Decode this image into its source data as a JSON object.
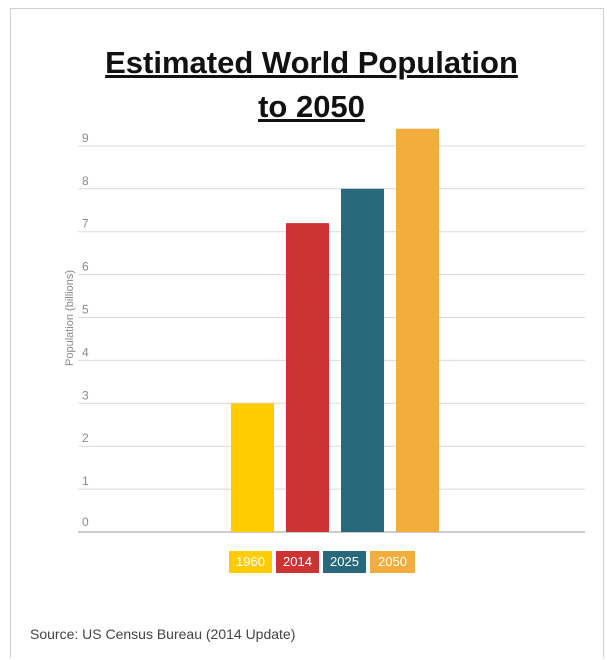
{
  "chart_data": {
    "type": "bar",
    "title_lines": [
      "Estimated World Population",
      "to 2050"
    ],
    "categories": [
      "1960",
      "2014",
      "2025",
      "2050"
    ],
    "values": [
      3.0,
      7.2,
      8.0,
      9.4
    ],
    "colors": [
      "#ffcc00",
      "#cc3333",
      "#27687a",
      "#f2ad3c"
    ],
    "ylabel": "Population (billions)",
    "yticks": [
      "0",
      "1",
      "2",
      "3",
      "4",
      "5",
      "6",
      "7",
      "8",
      "9"
    ],
    "ylim": [
      0,
      9.6
    ],
    "grid": true,
    "legend_position": "bottom-center"
  },
  "source": "Source: US Census Bureau (2014 Update)"
}
